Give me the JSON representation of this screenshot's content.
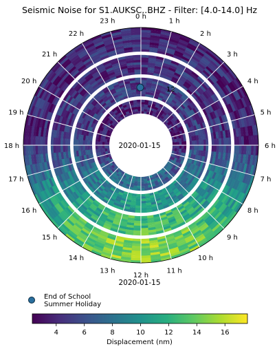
{
  "chart_data": {
    "type": "heatmap",
    "projection": "polar-clock",
    "title": "Seismic Noise for S1.AUKSC..BHZ - Filter: [4.0-14.0] Hz",
    "center_label": "2020-01-15",
    "bottom_label": "2020-01-15",
    "angular_tick_labels": [
      "0 h",
      "1 h",
      "2 h",
      "3 h",
      "4 h",
      "5 h",
      "6 h",
      "7 h",
      "8 h",
      "9 h",
      "10 h",
      "11 h",
      "12 h",
      "13 h",
      "14 h",
      "15 h",
      "16 h",
      "17 h",
      "18 h",
      "19 h",
      "20 h",
      "21 h",
      "22 h",
      "23 h"
    ],
    "radial_tick_label": "12",
    "colormap": "viridis",
    "color_range": [
      2.3,
      17.6
    ],
    "colorbar_ticks": [
      4,
      6,
      8,
      10,
      12,
      14,
      16
    ],
    "colorbar_label": "Displacement (nm)",
    "annotation": {
      "label": "End of School Summer Holiday",
      "hour": 0.0,
      "marker_color": "#2a6f9e"
    },
    "legend": {
      "placement": "bottom-left",
      "entries": [
        "End of School",
        "Summer Holiday"
      ]
    },
    "day_bands": [
      {
        "daytime_level": 8.0,
        "night_level": 3.5
      },
      {
        "daytime_level": 10.5,
        "night_level": 5.0
      },
      {
        "daytime_level": 13.0,
        "night_level": 4.5
      },
      {
        "daytime_level": 15.0,
        "night_level": 4.0
      }
    ]
  }
}
